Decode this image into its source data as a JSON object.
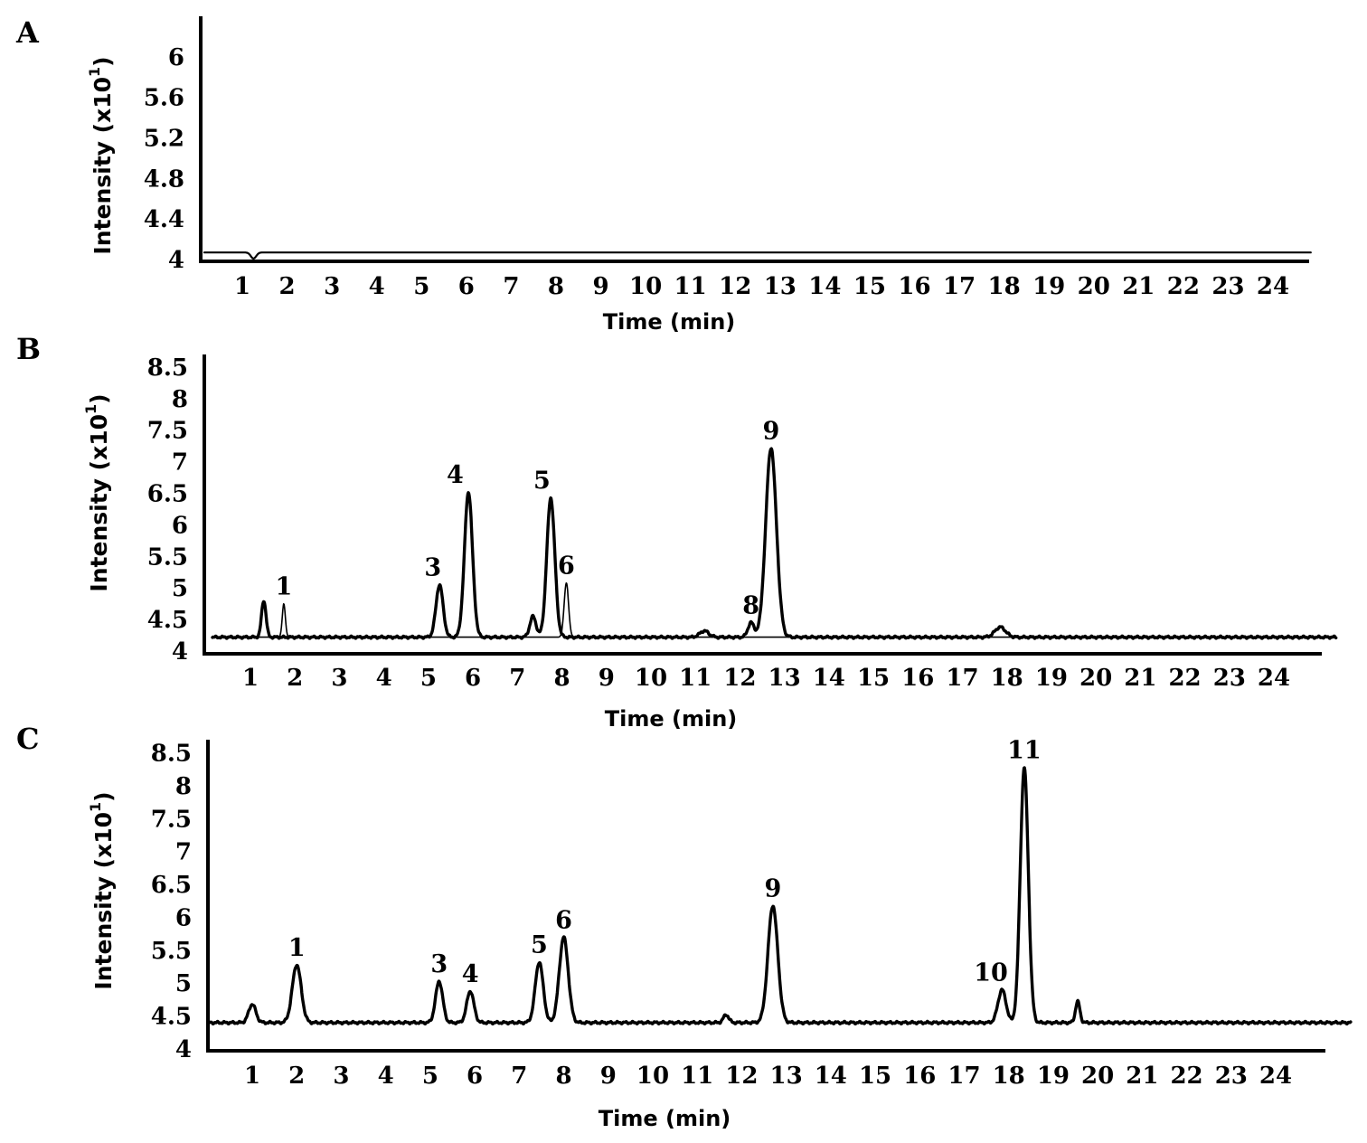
{
  "chart_data": [
    {
      "panel": "A",
      "type": "line",
      "xlabel": "Time (min)",
      "ylabel": "Intensity (x10",
      "ylabel_sup": "1",
      "ylabel_close": ")",
      "ylim": [
        4,
        6.4
      ],
      "yticks": [
        "4",
        "4.4",
        "4.8",
        "5.2",
        "5.6",
        "6"
      ],
      "xticks": [
        "1",
        "2",
        "3",
        "4",
        "5",
        "6",
        "7",
        "8",
        "9",
        "10",
        "11",
        "12",
        "13",
        "14",
        "15",
        "16",
        "17",
        "18",
        "19",
        "20",
        "21",
        "22",
        "23",
        "24"
      ],
      "baseline": 4.07,
      "dips": [
        {
          "x": 1.25,
          "depth": 0.06
        }
      ],
      "series": [
        {
          "peaks": []
        }
      ],
      "peak_labels": []
    },
    {
      "panel": "B",
      "type": "line",
      "xlabel": "Time (min)",
      "ylabel": "Intensity (x10",
      "ylabel_sup": "1",
      "ylabel_close": ")",
      "ylim": [
        4,
        8.7
      ],
      "yticks": [
        "4",
        "4.5",
        "5",
        "5.5",
        "6",
        "6.5",
        "7",
        "7.5",
        "8",
        "8.5"
      ],
      "xticks": [
        "1",
        "2",
        "3",
        "4",
        "5",
        "6",
        "7",
        "8",
        "9",
        "10",
        "11",
        "12",
        "13",
        "14",
        "15",
        "16",
        "17",
        "18",
        "19",
        "20",
        "21",
        "22",
        "23",
        "24"
      ],
      "baseline": 4.22,
      "series": [
        {
          "weight": "thick",
          "peaks": [
            {
              "x": 1.3,
              "y": 4.8,
              "w": 0.05
            },
            {
              "x": 5.25,
              "y": 5.05,
              "w": 0.08
            },
            {
              "x": 5.9,
              "y": 6.52,
              "w": 0.09
            },
            {
              "x": 7.35,
              "y": 4.55,
              "w": 0.07
            },
            {
              "x": 7.75,
              "y": 6.43,
              "w": 0.09
            },
            {
              "x": 11.2,
              "y": 4.32,
              "w": 0.1
            },
            {
              "x": 12.25,
              "y": 4.45,
              "w": 0.07
            },
            {
              "x": 12.7,
              "y": 7.22,
              "w": 0.12
            },
            {
              "x": 17.85,
              "y": 4.38,
              "w": 0.12
            }
          ]
        },
        {
          "weight": "thin",
          "peaks": [
            {
              "x": 1.75,
              "y": 4.75,
              "w": 0.035
            },
            {
              "x": 8.1,
              "y": 5.08,
              "w": 0.05
            }
          ]
        }
      ],
      "peak_labels": [
        {
          "text": "1",
          "x": 1.75,
          "y": 4.75
        },
        {
          "text": "3",
          "x": 5.1,
          "y": 5.05
        },
        {
          "text": "4",
          "x": 5.6,
          "y": 6.52
        },
        {
          "text": "5",
          "x": 7.55,
          "y": 6.43
        },
        {
          "text": "6",
          "x": 8.1,
          "y": 5.08
        },
        {
          "text": "8",
          "x": 12.25,
          "y": 4.45
        },
        {
          "text": "9",
          "x": 12.7,
          "y": 7.22
        }
      ]
    },
    {
      "panel": "C",
      "type": "line",
      "xlabel": "Time (min)",
      "ylabel": "Intensity (x10",
      "ylabel_sup": "1",
      "ylabel_close": ")",
      "ylim": [
        4,
        8.7
      ],
      "yticks": [
        "4",
        "4.5",
        "5",
        "5.5",
        "6",
        "6.5",
        "7",
        "7.5",
        "8",
        "8.5"
      ],
      "xticks": [
        "1",
        "2",
        "3",
        "4",
        "5",
        "6",
        "7",
        "8",
        "9",
        "10",
        "11",
        "12",
        "13",
        "14",
        "15",
        "16",
        "17",
        "18",
        "19",
        "20",
        "21",
        "22",
        "23",
        "24"
      ],
      "baseline": 4.4,
      "series": [
        {
          "weight": "thick",
          "peaks": [
            {
              "x": 1.0,
              "y": 4.68,
              "w": 0.08
            },
            {
              "x": 2.0,
              "y": 5.28,
              "w": 0.1
            },
            {
              "x": 5.2,
              "y": 5.03,
              "w": 0.08
            },
            {
              "x": 5.9,
              "y": 4.88,
              "w": 0.08
            },
            {
              "x": 7.45,
              "y": 5.32,
              "w": 0.09
            },
            {
              "x": 8.0,
              "y": 5.7,
              "w": 0.1
            },
            {
              "x": 11.65,
              "y": 4.52,
              "w": 0.06
            },
            {
              "x": 12.7,
              "y": 6.18,
              "w": 0.11
            },
            {
              "x": 17.85,
              "y": 4.9,
              "w": 0.09
            },
            {
              "x": 18.35,
              "y": 8.28,
              "w": 0.09
            },
            {
              "x": 19.55,
              "y": 4.72,
              "w": 0.05
            }
          ]
        }
      ],
      "peak_labels": [
        {
          "text": "1",
          "x": 2.0,
          "y": 5.28
        },
        {
          "text": "3",
          "x": 5.2,
          "y": 5.03
        },
        {
          "text": "4",
          "x": 5.9,
          "y": 4.88
        },
        {
          "text": "5",
          "x": 7.45,
          "y": 5.32
        },
        {
          "text": "6",
          "x": 8.0,
          "y": 5.7
        },
        {
          "text": "9",
          "x": 12.7,
          "y": 6.18
        },
        {
          "text": "10",
          "x": 17.6,
          "y": 4.9
        },
        {
          "text": "11",
          "x": 18.35,
          "y": 8.28
        }
      ]
    }
  ]
}
